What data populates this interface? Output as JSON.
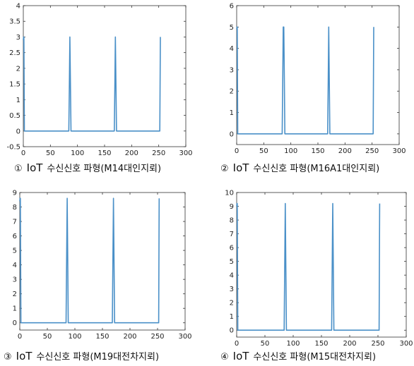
{
  "chart_data": [
    {
      "type": "line",
      "caption": {
        "num": "①",
        "iot": "IoT",
        "text": "수신신호 파형(M14대인지뢰)"
      },
      "xlim": [
        0,
        300
      ],
      "ylim": [
        -0.5,
        4
      ],
      "xticks": [
        "0",
        "50",
        "100",
        "150",
        "200",
        "250",
        "300"
      ],
      "yticks": [
        "-0.5",
        "0",
        "0.5",
        "1",
        "1.5",
        "2",
        "2.5",
        "3",
        "3.5",
        "4"
      ],
      "series": [
        {
          "color": "#4a90c8",
          "x": [
            0,
            0.5,
            1,
            2,
            84,
            85,
            86,
            87,
            88,
            168,
            169,
            170,
            171,
            172,
            252,
            253
          ],
          "y": [
            2.9,
            3,
            3,
            0,
            0,
            1.5,
            3,
            1.5,
            0,
            0,
            1.5,
            3,
            1.5,
            0,
            0,
            3
          ]
        }
      ]
    },
    {
      "type": "line",
      "caption": {
        "num": "②",
        "iot": "IoT",
        "text": "수신신호 파형(M16A1대인지뢰)"
      },
      "xlim": [
        0,
        300
      ],
      "ylim": [
        -0.5,
        6
      ],
      "xticks": [
        "0",
        "50",
        "100",
        "150",
        "200",
        "250",
        "300"
      ],
      "yticks": [
        "0",
        "1",
        "2",
        "3",
        "4",
        "5",
        "6"
      ],
      "series": [
        {
          "color": "#4a90c8",
          "x": [
            0,
            0.5,
            1,
            2,
            84,
            85,
            86,
            87,
            88,
            89,
            168,
            169,
            170,
            171,
            172,
            252,
            253
          ],
          "y": [
            4.9,
            5,
            5,
            0,
            0,
            2.5,
            5,
            5,
            2.5,
            0,
            0,
            2.5,
            5,
            2.5,
            0,
            0,
            5
          ]
        }
      ]
    },
    {
      "type": "line",
      "caption": {
        "num": "③",
        "iot": "IoT",
        "text": "수신신호 파형(M19대전차지뢰)"
      },
      "xlim": [
        0,
        300
      ],
      "ylim": [
        -0.5,
        9
      ],
      "xticks": [
        "0",
        "50",
        "100",
        "150",
        "200",
        "250",
        "300"
      ],
      "yticks": [
        "0",
        "1",
        "2",
        "3",
        "4",
        "5",
        "6",
        "7",
        "8",
        "9"
      ],
      "series": [
        {
          "color": "#4a90c8",
          "x": [
            0,
            0.5,
            1,
            2,
            84,
            85,
            86,
            87,
            88,
            168,
            169,
            170,
            171,
            172,
            252,
            253
          ],
          "y": [
            8.4,
            8.6,
            8.6,
            0,
            0,
            4.3,
            8.6,
            4.3,
            0,
            0,
            4.3,
            8.6,
            4.3,
            0,
            0,
            8.6
          ]
        }
      ]
    },
    {
      "type": "line",
      "caption": {
        "num": "④",
        "iot": "IoT",
        "text": "수신신호 파형(M15대전차지뢰)"
      },
      "xlim": [
        0,
        300
      ],
      "ylim": [
        -0.5,
        10
      ],
      "xticks": [
        "0",
        "50",
        "100",
        "150",
        "200",
        "250",
        "300"
      ],
      "yticks": [
        "0",
        "1",
        "2",
        "3",
        "4",
        "5",
        "6",
        "7",
        "8",
        "9",
        "10"
      ],
      "series": [
        {
          "color": "#4a90c8",
          "x": [
            0,
            0.5,
            1,
            2,
            84,
            85,
            86,
            87,
            88,
            168,
            169,
            170,
            171,
            172,
            252,
            253
          ],
          "y": [
            9,
            9.2,
            9.2,
            0,
            0,
            4.6,
            9.2,
            4.6,
            0,
            0,
            4.6,
            9.2,
            4.6,
            0,
            0,
            9.2
          ]
        }
      ]
    }
  ]
}
